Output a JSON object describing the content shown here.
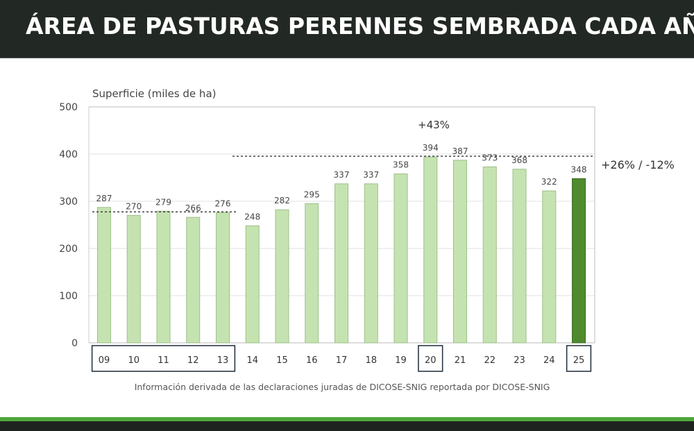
{
  "header": {
    "title": "ÁREA DE PASTURAS PERENNES SEMBRADA CADA AÑO"
  },
  "chart_data": {
    "type": "bar",
    "title": "ÁREA DE PASTURAS PERENNES SEMBRADA CADA AÑO",
    "ylabel": "Superficie (miles de ha)",
    "xlabel": "",
    "ylim": [
      0,
      500
    ],
    "yticks": [
      "0",
      "100",
      "200",
      "300",
      "400",
      "500"
    ],
    "categories": [
      "09",
      "10",
      "11",
      "12",
      "13",
      "14",
      "15",
      "16",
      "17",
      "18",
      "19",
      "20",
      "21",
      "22",
      "23",
      "24",
      "25"
    ],
    "values": [
      287,
      270,
      279,
      266,
      276,
      248,
      282,
      295,
      337,
      337,
      358,
      394,
      387,
      373,
      368,
      322,
      348
    ],
    "highlight_index": 16,
    "boxed_categories": [
      [
        0,
        4
      ],
      [
        11,
        11
      ],
      [
        16,
        16
      ]
    ],
    "reference_lines": [
      {
        "value": 276,
        "from": "09",
        "to": "13"
      },
      {
        "value": 394,
        "from": "13",
        "to": "25"
      }
    ],
    "annotations": {
      "peak": "+43%",
      "current": "+26% / -12%"
    },
    "source": "Información derivada de las declaraciones juradas de DICOSE-SNIG reportada por DICOSE-SNIG",
    "colors": {
      "bar": "#c5e3b0",
      "bar_stroke": "#9dbf8a",
      "highlight": "#4f8a2e",
      "highlight_stroke": "#3d6d22"
    }
  }
}
